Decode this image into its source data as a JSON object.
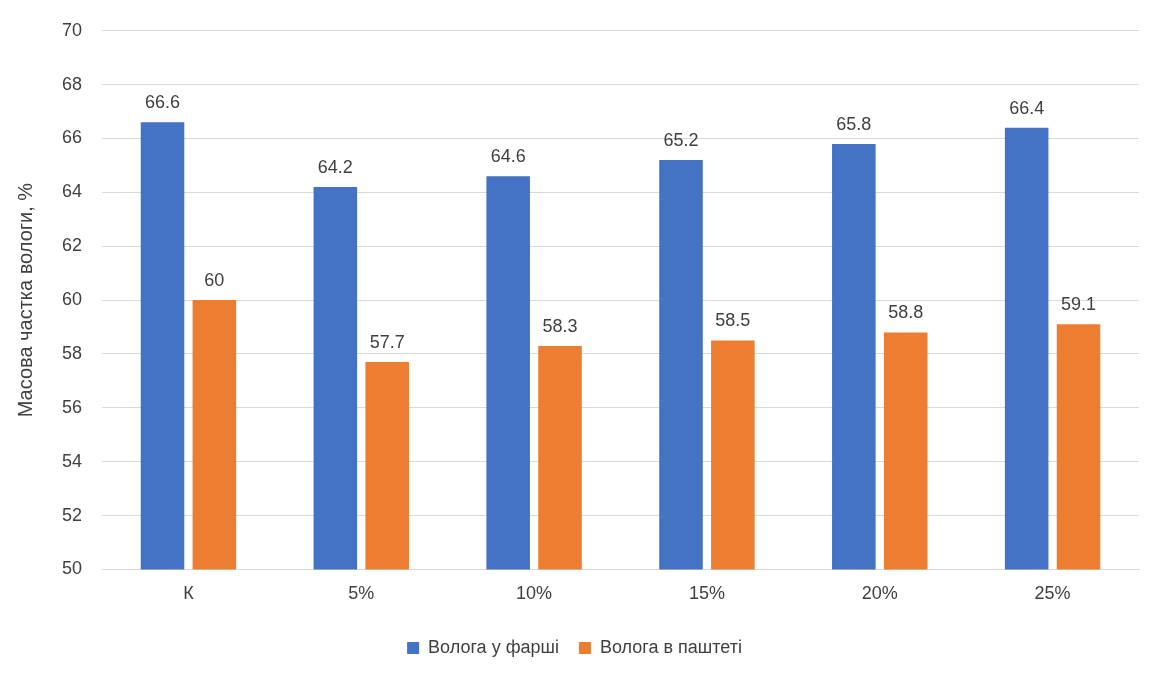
{
  "chart_data": {
    "type": "bar",
    "ylabel": "Масова частка вологи, %",
    "categories": [
      "К",
      "5%",
      "10%",
      "15%",
      "20%",
      "25%"
    ],
    "series": [
      {
        "name": "Волога у фарші",
        "color": "#4472c4",
        "values": [
          66.6,
          64.2,
          64.6,
          65.2,
          65.8,
          66.4
        ]
      },
      {
        "name": "Волога в паштеті",
        "color": "#ed7d31",
        "values": [
          60,
          57.7,
          58.3,
          58.5,
          58.8,
          59.1
        ]
      }
    ],
    "ylim": [
      50,
      70
    ],
    "yticks": [
      50,
      52,
      54,
      56,
      58,
      60,
      62,
      64,
      66,
      68,
      70
    ],
    "grid": "y",
    "legend": "bottom",
    "data_labels": true
  }
}
